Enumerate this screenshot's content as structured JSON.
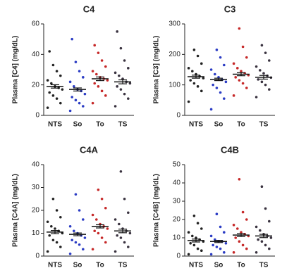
{
  "chart_data": [
    {
      "type": "strip",
      "title": "C4",
      "y_label": "Plasma [C4] (mg/dL)",
      "categories": [
        "NTS",
        "So",
        "To",
        "TS"
      ],
      "colors": [
        "#222222",
        "#2b3cc4",
        "#c62828",
        "#3a3340"
      ],
      "ylim": [
        0,
        60
      ],
      "yticks": [
        0,
        20,
        40,
        60
      ],
      "points": [
        [
          5,
          8,
          11,
          13,
          15,
          17,
          18,
          19,
          21,
          23,
          26,
          29,
          33,
          42
        ],
        [
          3,
          6,
          8,
          10,
          12,
          14,
          16,
          17,
          19,
          22,
          25,
          29,
          35,
          50
        ],
        [
          8,
          13,
          16,
          19,
          21,
          23,
          24,
          25,
          27,
          29,
          32,
          36,
          41,
          46
        ],
        [
          6,
          11,
          14,
          17,
          19,
          21,
          22,
          24,
          26,
          28,
          31,
          36,
          44,
          55
        ]
      ],
      "means": [
        19,
        17,
        24,
        22
      ],
      "errors": [
        1.1,
        1.0,
        1.2,
        1.3
      ]
    },
    {
      "type": "strip",
      "title": "C3",
      "y_label": "Plasma [C3] (mg/dL)",
      "categories": [
        "NTS",
        "So",
        "To",
        "TS"
      ],
      "colors": [
        "#222222",
        "#2b3cc4",
        "#c62828",
        "#3a3340"
      ],
      "ylim": [
        0,
        300
      ],
      "yticks": [
        0,
        100,
        200,
        300
      ],
      "points": [
        [
          45,
          80,
          95,
          105,
          115,
          122,
          128,
          135,
          145,
          155,
          170,
          195,
          215
        ],
        [
          20,
          55,
          75,
          90,
          100,
          110,
          117,
          125,
          135,
          150,
          165,
          190,
          215
        ],
        [
          65,
          90,
          105,
          115,
          125,
          132,
          138,
          145,
          155,
          170,
          190,
          225,
          285
        ],
        [
          60,
          85,
          100,
          110,
          118,
          124,
          130,
          138,
          148,
          160,
          180,
          205,
          230
        ]
      ],
      "means": [
        127,
        118,
        135,
        125
      ],
      "errors": [
        5,
        4,
        5,
        6
      ]
    },
    {
      "type": "strip",
      "title": "C4A",
      "y_label": "Plasma [C4A] (mg/dL)",
      "categories": [
        "NTS",
        "So",
        "To",
        "TS"
      ],
      "colors": [
        "#222222",
        "#2b3cc4",
        "#c62828",
        "#3a3340"
      ],
      "ylim": [
        0,
        40
      ],
      "yticks": [
        0,
        10,
        20,
        30,
        40
      ],
      "points": [
        [
          2,
          4,
          6,
          7,
          9,
          10,
          11,
          12,
          13,
          15,
          17,
          20,
          25
        ],
        [
          1,
          3,
          5,
          6,
          7,
          8,
          9,
          10,
          11,
          13,
          16,
          20,
          27
        ],
        [
          3,
          6,
          8,
          10,
          11,
          12,
          13,
          14,
          16,
          18,
          21,
          25,
          29
        ],
        [
          2,
          4,
          6,
          8,
          9,
          10,
          11,
          12,
          14,
          16,
          19,
          25,
          37
        ]
      ],
      "means": [
        10.5,
        9.5,
        13,
        11
      ],
      "errors": [
        0.7,
        0.6,
        0.7,
        0.8
      ]
    },
    {
      "type": "strip",
      "title": "C4B",
      "y_label": "Plasma [C4B] (mg/dL)",
      "categories": [
        "NTS",
        "So",
        "To",
        "TS"
      ],
      "colors": [
        "#222222",
        "#2b3cc4",
        "#c62828",
        "#3a3340"
      ],
      "ylim": [
        0,
        50
      ],
      "yticks": [
        0,
        10,
        20,
        30,
        40,
        50
      ],
      "points": [
        [
          1,
          3,
          4,
          6,
          7,
          8,
          9,
          10,
          11,
          13,
          15,
          18,
          22
        ],
        [
          1,
          2,
          4,
          5,
          6,
          7,
          8,
          8,
          9,
          11,
          13,
          16,
          23
        ],
        [
          2,
          4,
          6,
          8,
          10,
          11,
          12,
          13,
          15,
          17,
          20,
          24,
          42
        ],
        [
          2,
          4,
          6,
          8,
          9,
          10,
          11,
          12,
          14,
          16,
          19,
          26,
          38
        ]
      ],
      "means": [
        8.5,
        8,
        11.5,
        11
      ],
      "errors": [
        0.8,
        0.6,
        0.8,
        0.9
      ]
    }
  ]
}
